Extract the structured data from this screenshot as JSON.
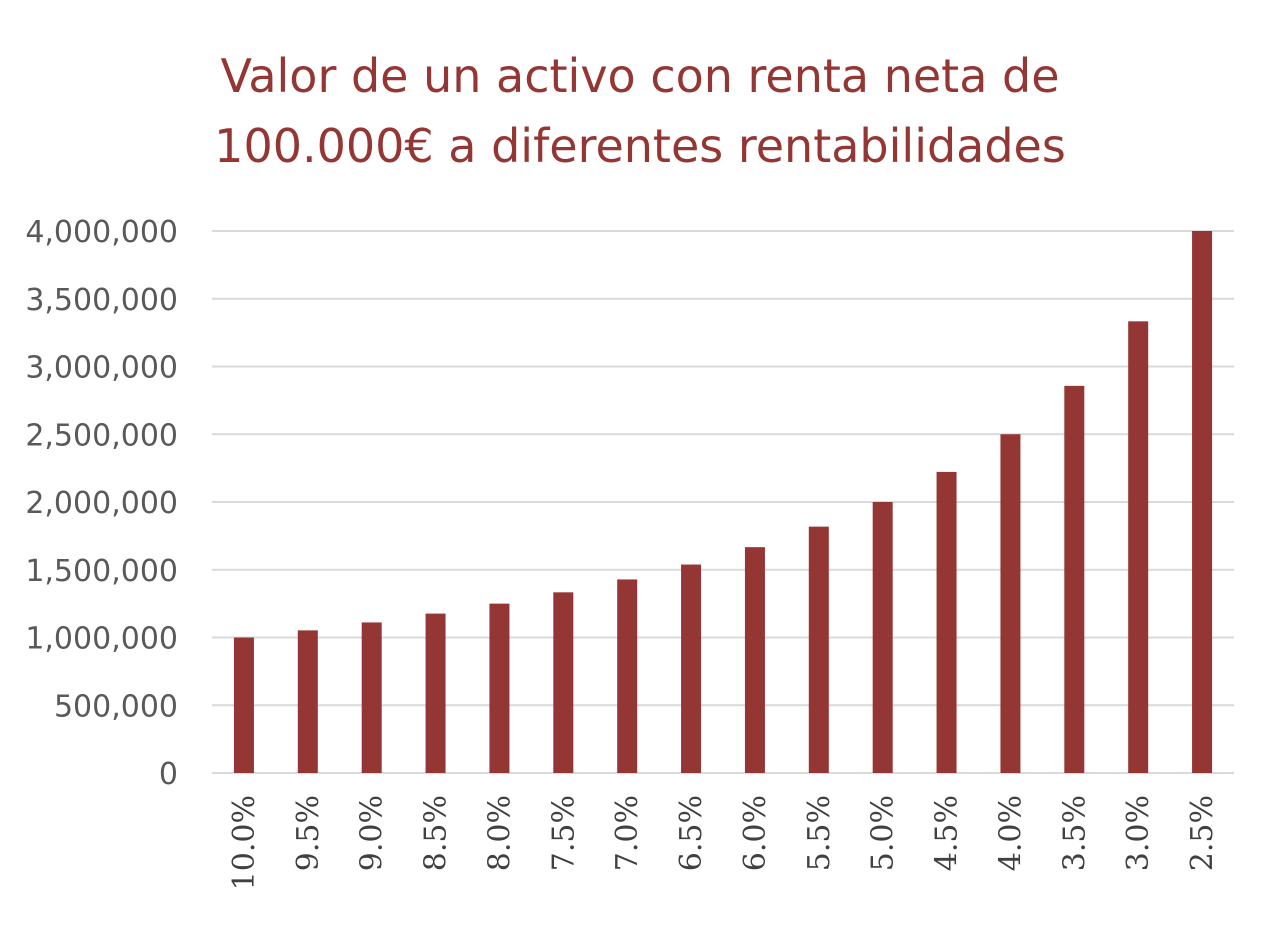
{
  "chart_data": {
    "type": "bar",
    "title_lines": [
      "Valor de un activo con renta neta de",
      "100.000€ a diferentes rentabilidades"
    ],
    "xlabel": "",
    "ylabel": "",
    "categories": [
      "10.0%",
      "9.5%",
      "9.0%",
      "8.5%",
      "8.0%",
      "7.5%",
      "7.0%",
      "6.5%",
      "6.0%",
      "5.5%",
      "5.0%",
      "4.5%",
      "4.0%",
      "3.5%",
      "3.0%",
      "2.5%"
    ],
    "values": [
      1000000,
      1052632,
      1111111,
      1176471,
      1250000,
      1333333,
      1428571,
      1538462,
      1666667,
      1818182,
      2000000,
      2222222,
      2500000,
      2857143,
      3333333,
      4000000
    ],
    "y_ticks": [
      0,
      500000,
      1000000,
      1500000,
      2000000,
      2500000,
      3000000,
      3500000,
      4000000
    ],
    "y_tick_labels": [
      "0",
      "500,000",
      "1,000,000",
      "1,500,000",
      "2,000,000",
      "2,500,000",
      "3,000,000",
      "3,500,000",
      "4,000,000"
    ],
    "ylim": [
      0,
      4000000
    ],
    "grid": true,
    "legend": "none",
    "colors": {
      "bar": "#943634",
      "title": "#943634",
      "gridline": "#d9d9d9",
      "axis_text": "#595959"
    }
  }
}
